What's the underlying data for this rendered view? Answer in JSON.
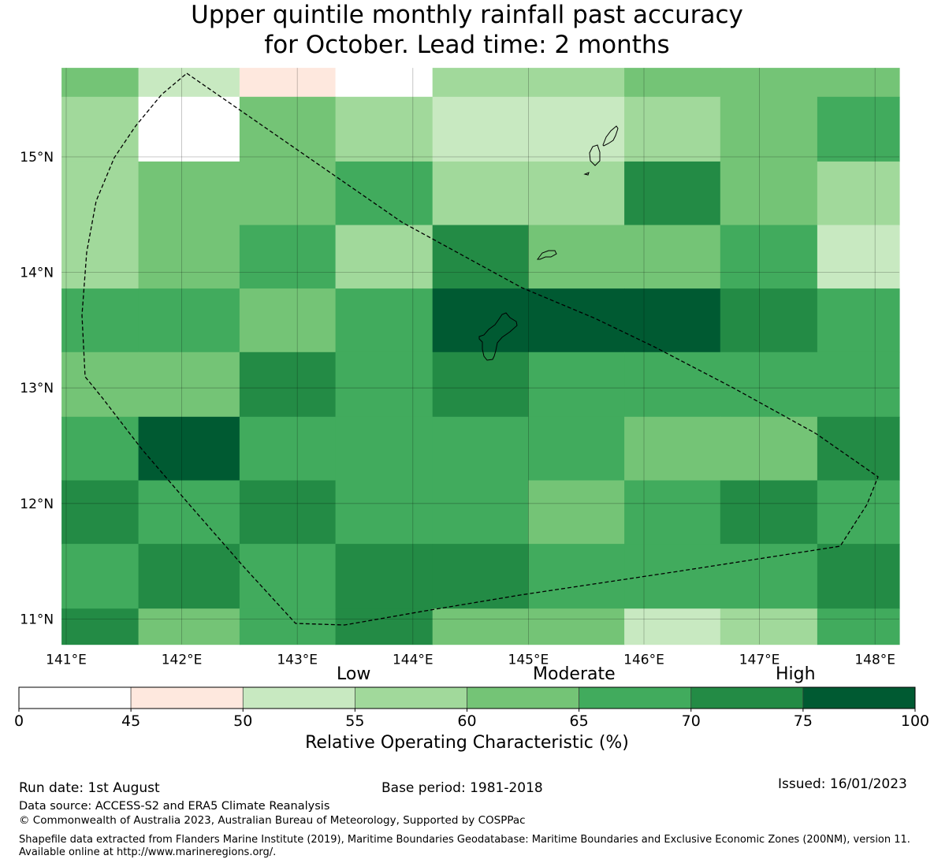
{
  "title": {
    "line1": "Upper quintile monthly rainfall past accuracy",
    "line2": "for October. Lead time: 2 months"
  },
  "map": {
    "lon_ticks": [
      "141°E",
      "142°E",
      "143°E",
      "144°E",
      "145°E",
      "146°E",
      "147°E",
      "148°E"
    ],
    "lat_ticks": [
      "15°N",
      "14°N",
      "13°N",
      "12°N",
      "11°N"
    ],
    "grid_lon_edges": [
      140.96,
      141.625,
      142.5,
      143.33,
      144.17,
      145.0,
      145.83,
      146.66,
      147.5,
      148.21
    ],
    "grid_lat_edges": [
      15.77,
      15.52,
      14.96,
      14.41,
      13.86,
      13.31,
      12.75,
      12.2,
      11.65,
      11.09,
      10.78
    ],
    "cells": [
      [
        62,
        52,
        47,
        0,
        57,
        57,
        62,
        62,
        62
      ],
      [
        57,
        0,
        62,
        57,
        52,
        52,
        57,
        62,
        67
      ],
      [
        57,
        62,
        62,
        67,
        57,
        57,
        72,
        62,
        57
      ],
      [
        57,
        62,
        67,
        57,
        72,
        62,
        62,
        67,
        52
      ],
      [
        67,
        67,
        62,
        67,
        77,
        77,
        77,
        72,
        67
      ],
      [
        62,
        62,
        72,
        67,
        72,
        67,
        67,
        67,
        67
      ],
      [
        67,
        77,
        67,
        67,
        67,
        67,
        62,
        62,
        72
      ],
      [
        72,
        67,
        72,
        67,
        67,
        62,
        67,
        72,
        67
      ],
      [
        67,
        72,
        67,
        72,
        72,
        67,
        67,
        67,
        72
      ],
      [
        72,
        62,
        67,
        72,
        62,
        62,
        52,
        57,
        67
      ]
    ]
  },
  "colorbar": {
    "category_labels": [
      "Low",
      "Moderate",
      "High"
    ],
    "bounds": [
      0,
      45,
      50,
      55,
      60,
      65,
      70,
      75,
      100
    ],
    "tick_labels": [
      "0",
      "45",
      "50",
      "55",
      "60",
      "65",
      "70",
      "75",
      "100"
    ],
    "colors": [
      "#ffffff",
      "#fee8de",
      "#c8e9c1",
      "#a1d99b",
      "#74c476",
      "#41ab5d",
      "#238b45",
      "#005a32"
    ],
    "title": "Relative Operating Characteristic (%)"
  },
  "footer": {
    "run_date": "Run date: 1st August",
    "base_period": "Base period: 1981-2018",
    "issued": "Issued: 16/01/2023",
    "data_source": "Data source: ACCESS-S2 and ERA5 Climate Reanalysis",
    "copyright": "© Commonwealth of Australia 2023, Australian Bureau of Meteorology, Supported by COSPPac",
    "shapefile": "Shapefile data extracted from Flanders Marine Institute (2019), Maritime Boundaries Geodatabase: Maritime Boundaries and Exclusive Economic Zones (200NM), version 11. Available online at http://www.marineregions.org/."
  }
}
